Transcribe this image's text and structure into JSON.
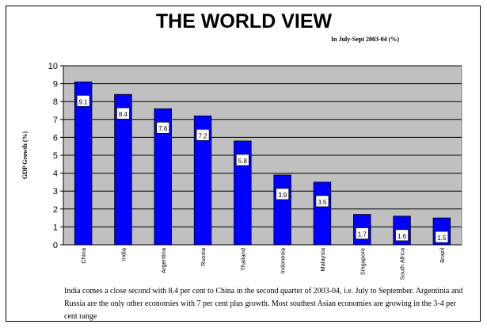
{
  "chart_data": {
    "type": "bar",
    "title": "THE WORLD VIEW",
    "subtitle": "In July-Sept 2003-04 (%)",
    "ylabel": "GDP Growth (%)",
    "xlabel": "",
    "categories": [
      "China",
      "India",
      "Argentina",
      "Russia",
      "Thailand",
      "Indonesia",
      "Malaysia",
      "Singapore",
      "South Africa",
      "Brazil"
    ],
    "values": [
      9.1,
      8.4,
      7.6,
      7.2,
      5.8,
      3.9,
      3.5,
      1.7,
      1.6,
      1.5
    ],
    "data_labels": [
      "9.1",
      "8.4",
      "7.6",
      "7.2",
      "5.8",
      "3.9",
      "3.5",
      "1.7",
      "1.6",
      "1.5"
    ],
    "ylim": [
      0,
      10
    ],
    "yticks": [
      "0",
      "1",
      "2",
      "3",
      "4",
      "5",
      "6",
      "7",
      "8",
      "9",
      "10"
    ],
    "grid": true,
    "legend": "none",
    "colors": {
      "bar": "#0000ff",
      "plot_bg": "#c0c0c0",
      "label_bg": "#ffffff"
    }
  },
  "caption": "India comes a close second with 8.4 per cent to China in the second quarter of 2003-04, i.e. July to September.  Argentinia and Russia are the only other economies with 7 per cent plus growth. Most southest Asian economies are growing in the 3-4 per cent range"
}
